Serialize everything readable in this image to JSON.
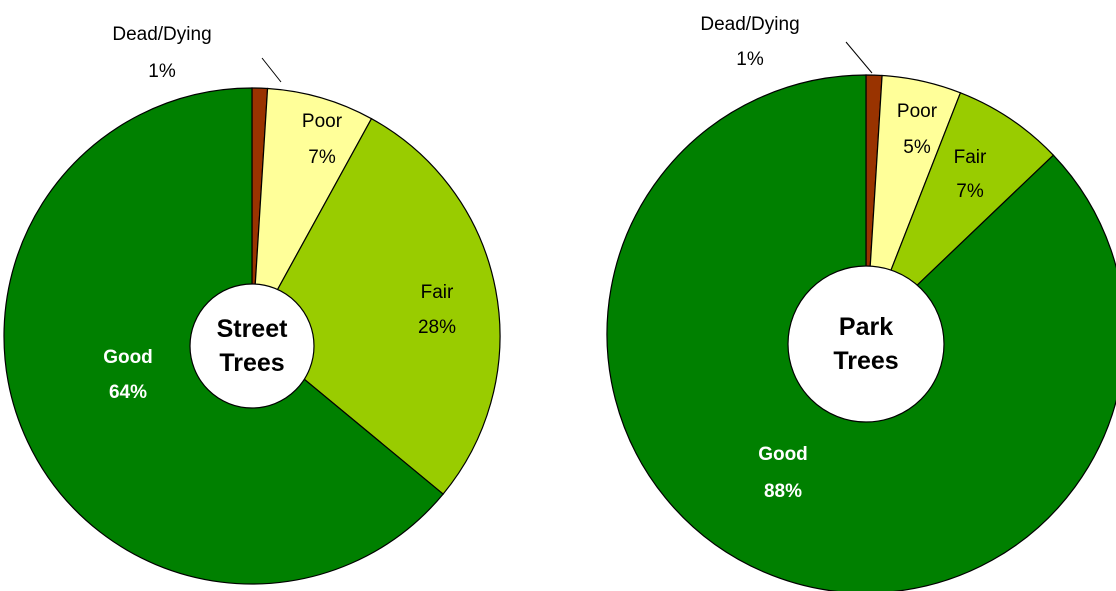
{
  "chart_data": [
    {
      "type": "pie",
      "title": "Street Trees",
      "categories": [
        "Dead/Dying",
        "Poor",
        "Fair",
        "Good"
      ],
      "values": [
        1,
        7,
        28,
        64
      ],
      "value_labels": [
        "1%",
        "7%",
        "28%",
        "64%"
      ],
      "colors": [
        "#993300",
        "#ffff99",
        "#99cc00",
        "#008000"
      ]
    },
    {
      "type": "pie",
      "title": "Park Trees",
      "categories": [
        "Dead/Dying",
        "Poor",
        "Fair",
        "Good"
      ],
      "values": [
        1,
        5,
        7,
        88
      ],
      "value_labels": [
        "1%",
        "5%",
        "7%",
        "88%"
      ],
      "colors": [
        "#993300",
        "#ffff99",
        "#99cc00",
        "#008000"
      ]
    }
  ]
}
